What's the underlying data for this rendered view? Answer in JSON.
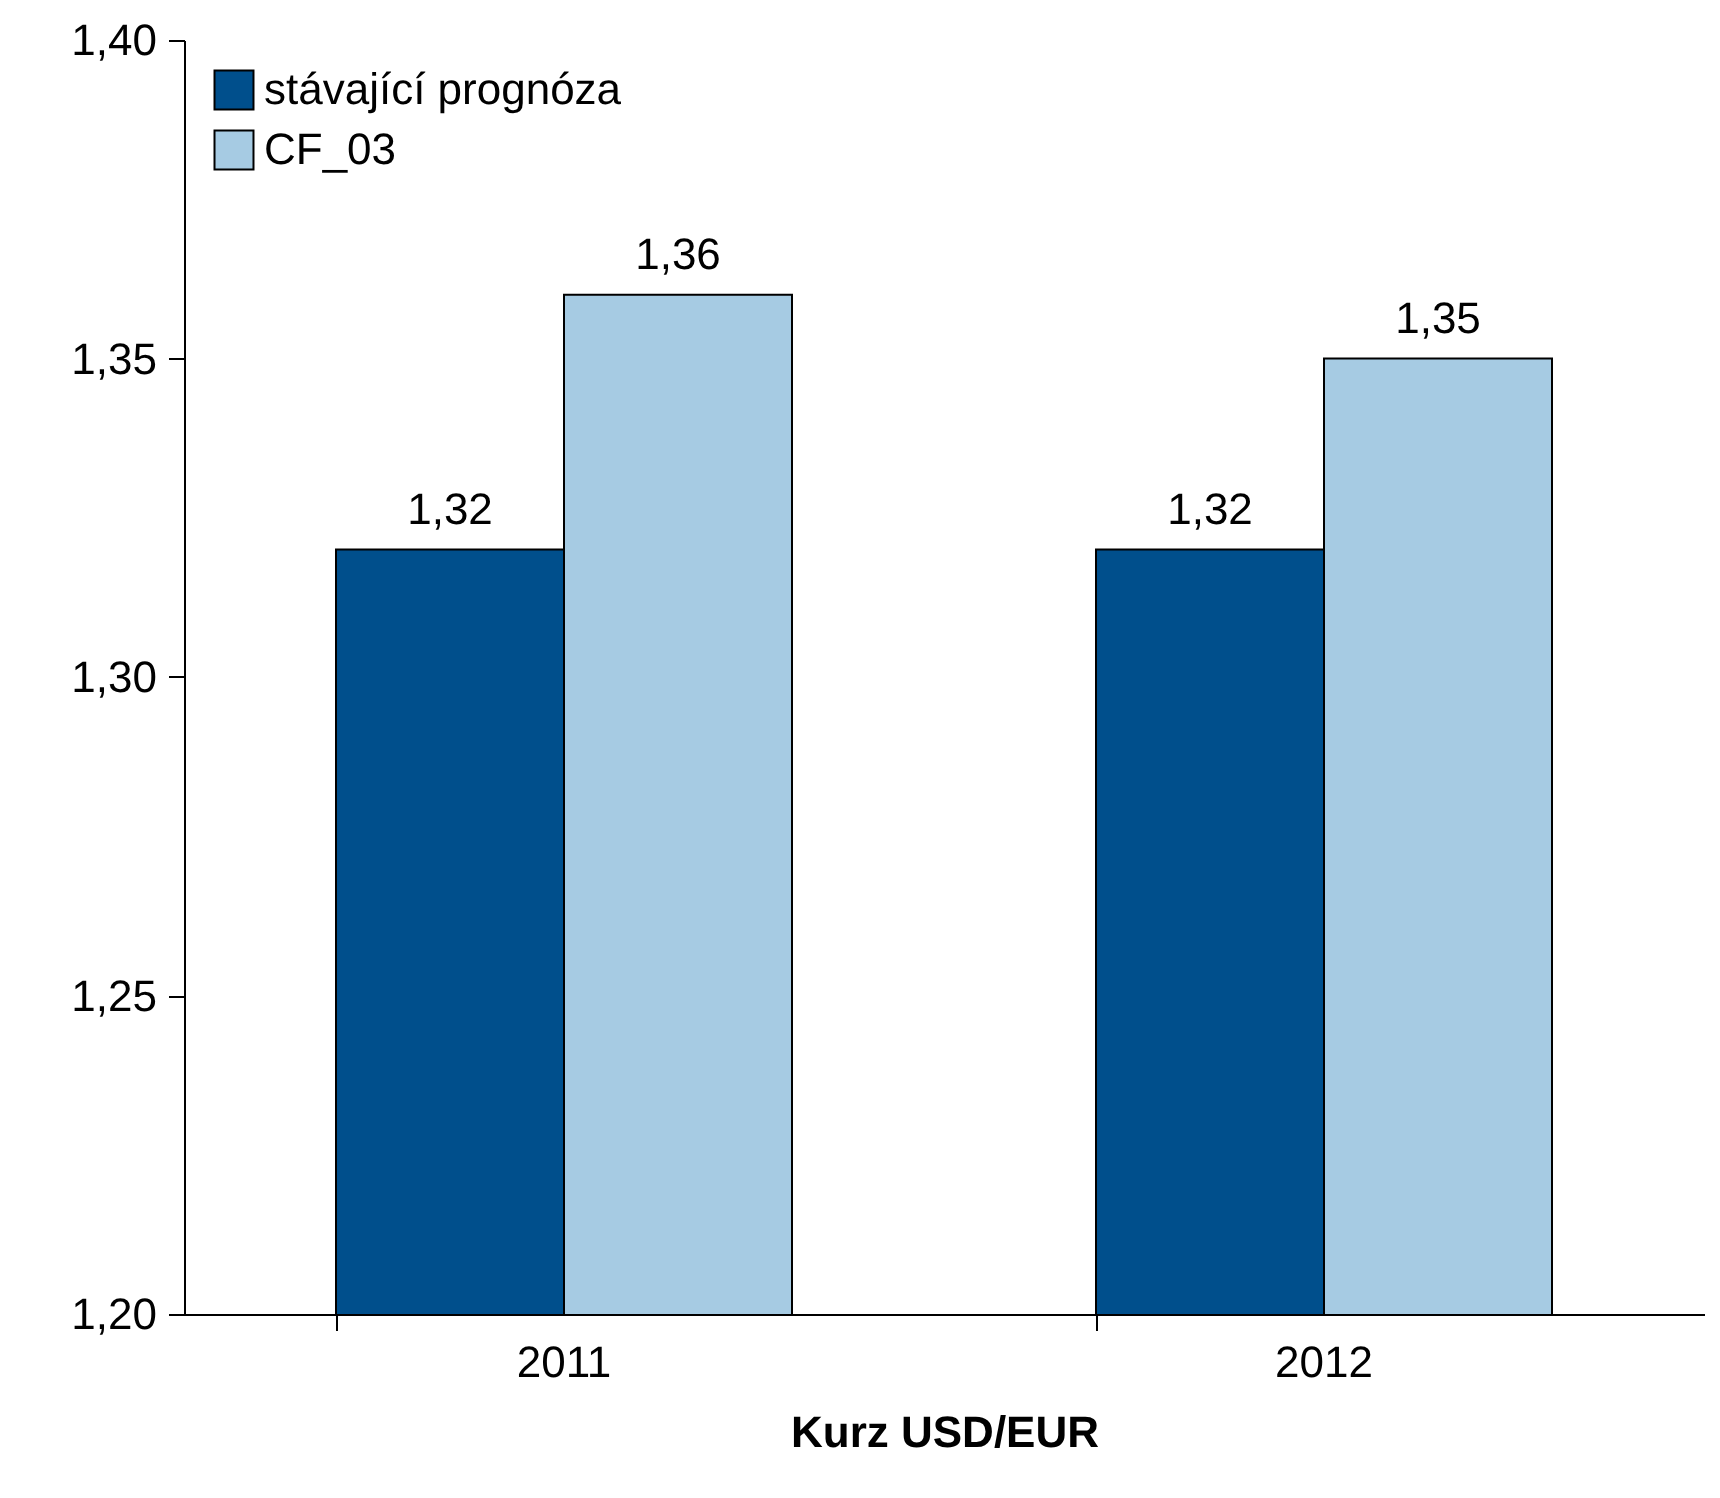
{
  "chart_data": {
    "type": "bar",
    "xlabel": "Kurz USD/EUR",
    "categories": [
      "2011",
      "2012"
    ],
    "series": [
      {
        "name": "stávající prognóza",
        "color": "#004f8c",
        "values": [
          1.32,
          1.32
        ],
        "value_labels": [
          "1,32",
          "1,32"
        ]
      },
      {
        "name": "CF_03",
        "color": "#a6cbe3",
        "values": [
          1.36,
          1.35
        ],
        "value_labels": [
          "1,36",
          "1,35"
        ]
      }
    ],
    "ylim": [
      1.2,
      1.4
    ],
    "yticks": [
      {
        "value": 1.2,
        "label": "1,20"
      },
      {
        "value": 1.25,
        "label": "1,25"
      },
      {
        "value": 1.3,
        "label": "1,30"
      },
      {
        "value": 1.35,
        "label": "1,35"
      },
      {
        "value": 1.4,
        "label": "1,40"
      }
    ],
    "legend": "top left"
  }
}
